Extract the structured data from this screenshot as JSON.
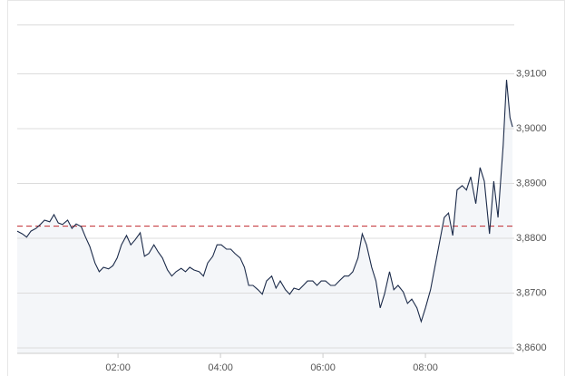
{
  "chart_data": {
    "type": "line",
    "x": [
      2,
      8,
      13,
      18,
      24,
      29,
      34,
      40,
      45,
      50,
      55,
      61,
      66,
      71,
      77,
      82,
      87,
      93,
      98,
      103,
      109,
      114,
      119,
      124,
      130,
      135,
      140,
      146,
      151,
      156,
      162,
      167,
      172,
      178,
      183,
      188,
      194,
      199,
      204,
      209,
      215,
      220,
      225,
      231,
      236,
      241,
      247,
      252,
      257,
      263,
      268,
      273,
      278,
      284,
      289,
      294,
      300,
      305,
      310,
      316,
      321,
      326,
      332,
      337,
      342,
      348,
      353,
      358,
      363,
      369,
      374,
      379,
      385,
      390,
      395,
      401,
      406,
      411,
      417,
      422,
      427,
      432,
      438,
      443,
      448,
      454,
      459,
      464,
      470,
      475,
      480,
      486,
      491,
      496,
      502,
      507,
      512,
      517,
      523,
      528,
      533,
      539,
      544,
      549,
      555,
      560,
      565,
      571,
      575,
      579,
      582
    ],
    "values": [
      3.8813,
      3.8808,
      3.8802,
      3.8813,
      3.8818,
      3.8825,
      3.8833,
      3.883,
      3.8843,
      3.8828,
      3.8825,
      3.8833,
      3.8818,
      3.8826,
      3.8821,
      3.8802,
      3.8785,
      3.8755,
      3.8739,
      3.8747,
      3.8744,
      3.875,
      3.8764,
      3.8788,
      3.8805,
      3.8788,
      3.8797,
      3.881,
      3.8767,
      3.8772,
      3.8788,
      3.8775,
      3.8764,
      3.8742,
      3.8731,
      3.8739,
      3.8745,
      3.8739,
      3.8747,
      3.8742,
      3.8739,
      3.8731,
      3.8755,
      3.8767,
      3.8788,
      3.8788,
      3.878,
      3.878,
      3.8772,
      3.8764,
      3.8747,
      3.8714,
      3.8714,
      3.8706,
      3.8698,
      3.8722,
      3.8731,
      3.8709,
      3.8722,
      3.8706,
      3.8698,
      3.8709,
      3.8706,
      3.8714,
      3.8722,
      3.8722,
      3.8714,
      3.8722,
      3.8722,
      3.8714,
      3.8714,
      3.8722,
      3.8731,
      3.8731,
      3.8739,
      3.8764,
      3.8808,
      3.8788,
      3.8747,
      3.8722,
      3.8673,
      3.8698,
      3.8739,
      3.8706,
      3.8714,
      3.8702,
      3.8681,
      3.8689,
      3.8673,
      3.8648,
      3.8673,
      3.8706,
      3.8747,
      3.8788,
      3.8838,
      3.8846,
      3.8805,
      3.8888,
      3.8896,
      3.8888,
      3.8912,
      3.8863,
      3.8929,
      3.8904,
      3.8808,
      3.8904,
      3.8838,
      3.897,
      3.9089,
      3.902,
      3.9003
    ],
    "color": "#1c2b4a",
    "fill": "#f4f6f9",
    "reference": 3.8822,
    "reference_color": "#c0262d",
    "xlim": [
      2,
      584
    ],
    "xticks": [
      {
        "value": 120,
        "label": "02:00"
      },
      {
        "value": 240,
        "label": "04:00"
      },
      {
        "value": 360,
        "label": "06:00"
      },
      {
        "value": 480,
        "label": "08:00"
      }
    ],
    "ylim": [
      3.859,
      3.919
    ],
    "yticks": [
      {
        "value": 3.86,
        "label": "3,8600"
      },
      {
        "value": 3.87,
        "label": "3,8700"
      },
      {
        "value": 3.88,
        "label": "3,8800"
      },
      {
        "value": 3.89,
        "label": "3,8900"
      },
      {
        "value": 3.9,
        "label": "3,9000"
      },
      {
        "value": 3.91,
        "label": "3,9100"
      }
    ],
    "grid": true
  }
}
